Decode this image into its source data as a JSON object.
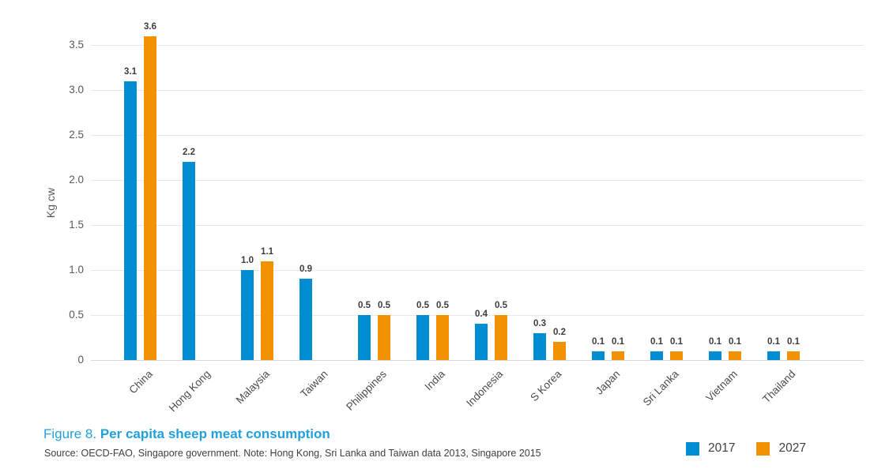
{
  "figure": {
    "title_prefix": "Figure 8.",
    "title": "Per capita sheep meat consumption",
    "source": "Source: OECD-FAO, Singapore government. Note: Hong Kong, Sri Lanka and Taiwan data 2013, Singapore 2015"
  },
  "colors": {
    "series_2017": "#008ed2",
    "series_2027": "#f39200",
    "title_blue": "#21a0db",
    "gridline": "#e8e8e8",
    "axis_text": "#58595b",
    "value_text": "#3d3d3f"
  },
  "chart_data": {
    "type": "bar",
    "categories": [
      "China",
      "Hong Kong",
      "Malaysia",
      "Taiwan",
      "Philippines",
      "India",
      "Indonesia",
      "S Korea",
      "Japan",
      "Sri Lanka",
      "Vietnam",
      "Thailand"
    ],
    "series": [
      {
        "name": "2017",
        "color": "#008ed2",
        "values": [
          3.1,
          2.2,
          1.0,
          0.9,
          0.5,
          0.5,
          0.4,
          0.3,
          0.1,
          0.1,
          0.1,
          0.1
        ]
      },
      {
        "name": "2027",
        "color": "#f39200",
        "values": [
          3.6,
          null,
          1.1,
          null,
          0.5,
          0.5,
          0.5,
          0.2,
          0.1,
          0.1,
          0.1,
          0.1
        ]
      }
    ],
    "ylabel": "Kg cw",
    "yticks": [
      3.5,
      3.0,
      2.5,
      2.0,
      1.5,
      1.0,
      0.5,
      0
    ],
    "ylim": [
      0,
      3.5
    ],
    "grid": true,
    "value_labels": true,
    "legend_position": "bottom-right"
  }
}
